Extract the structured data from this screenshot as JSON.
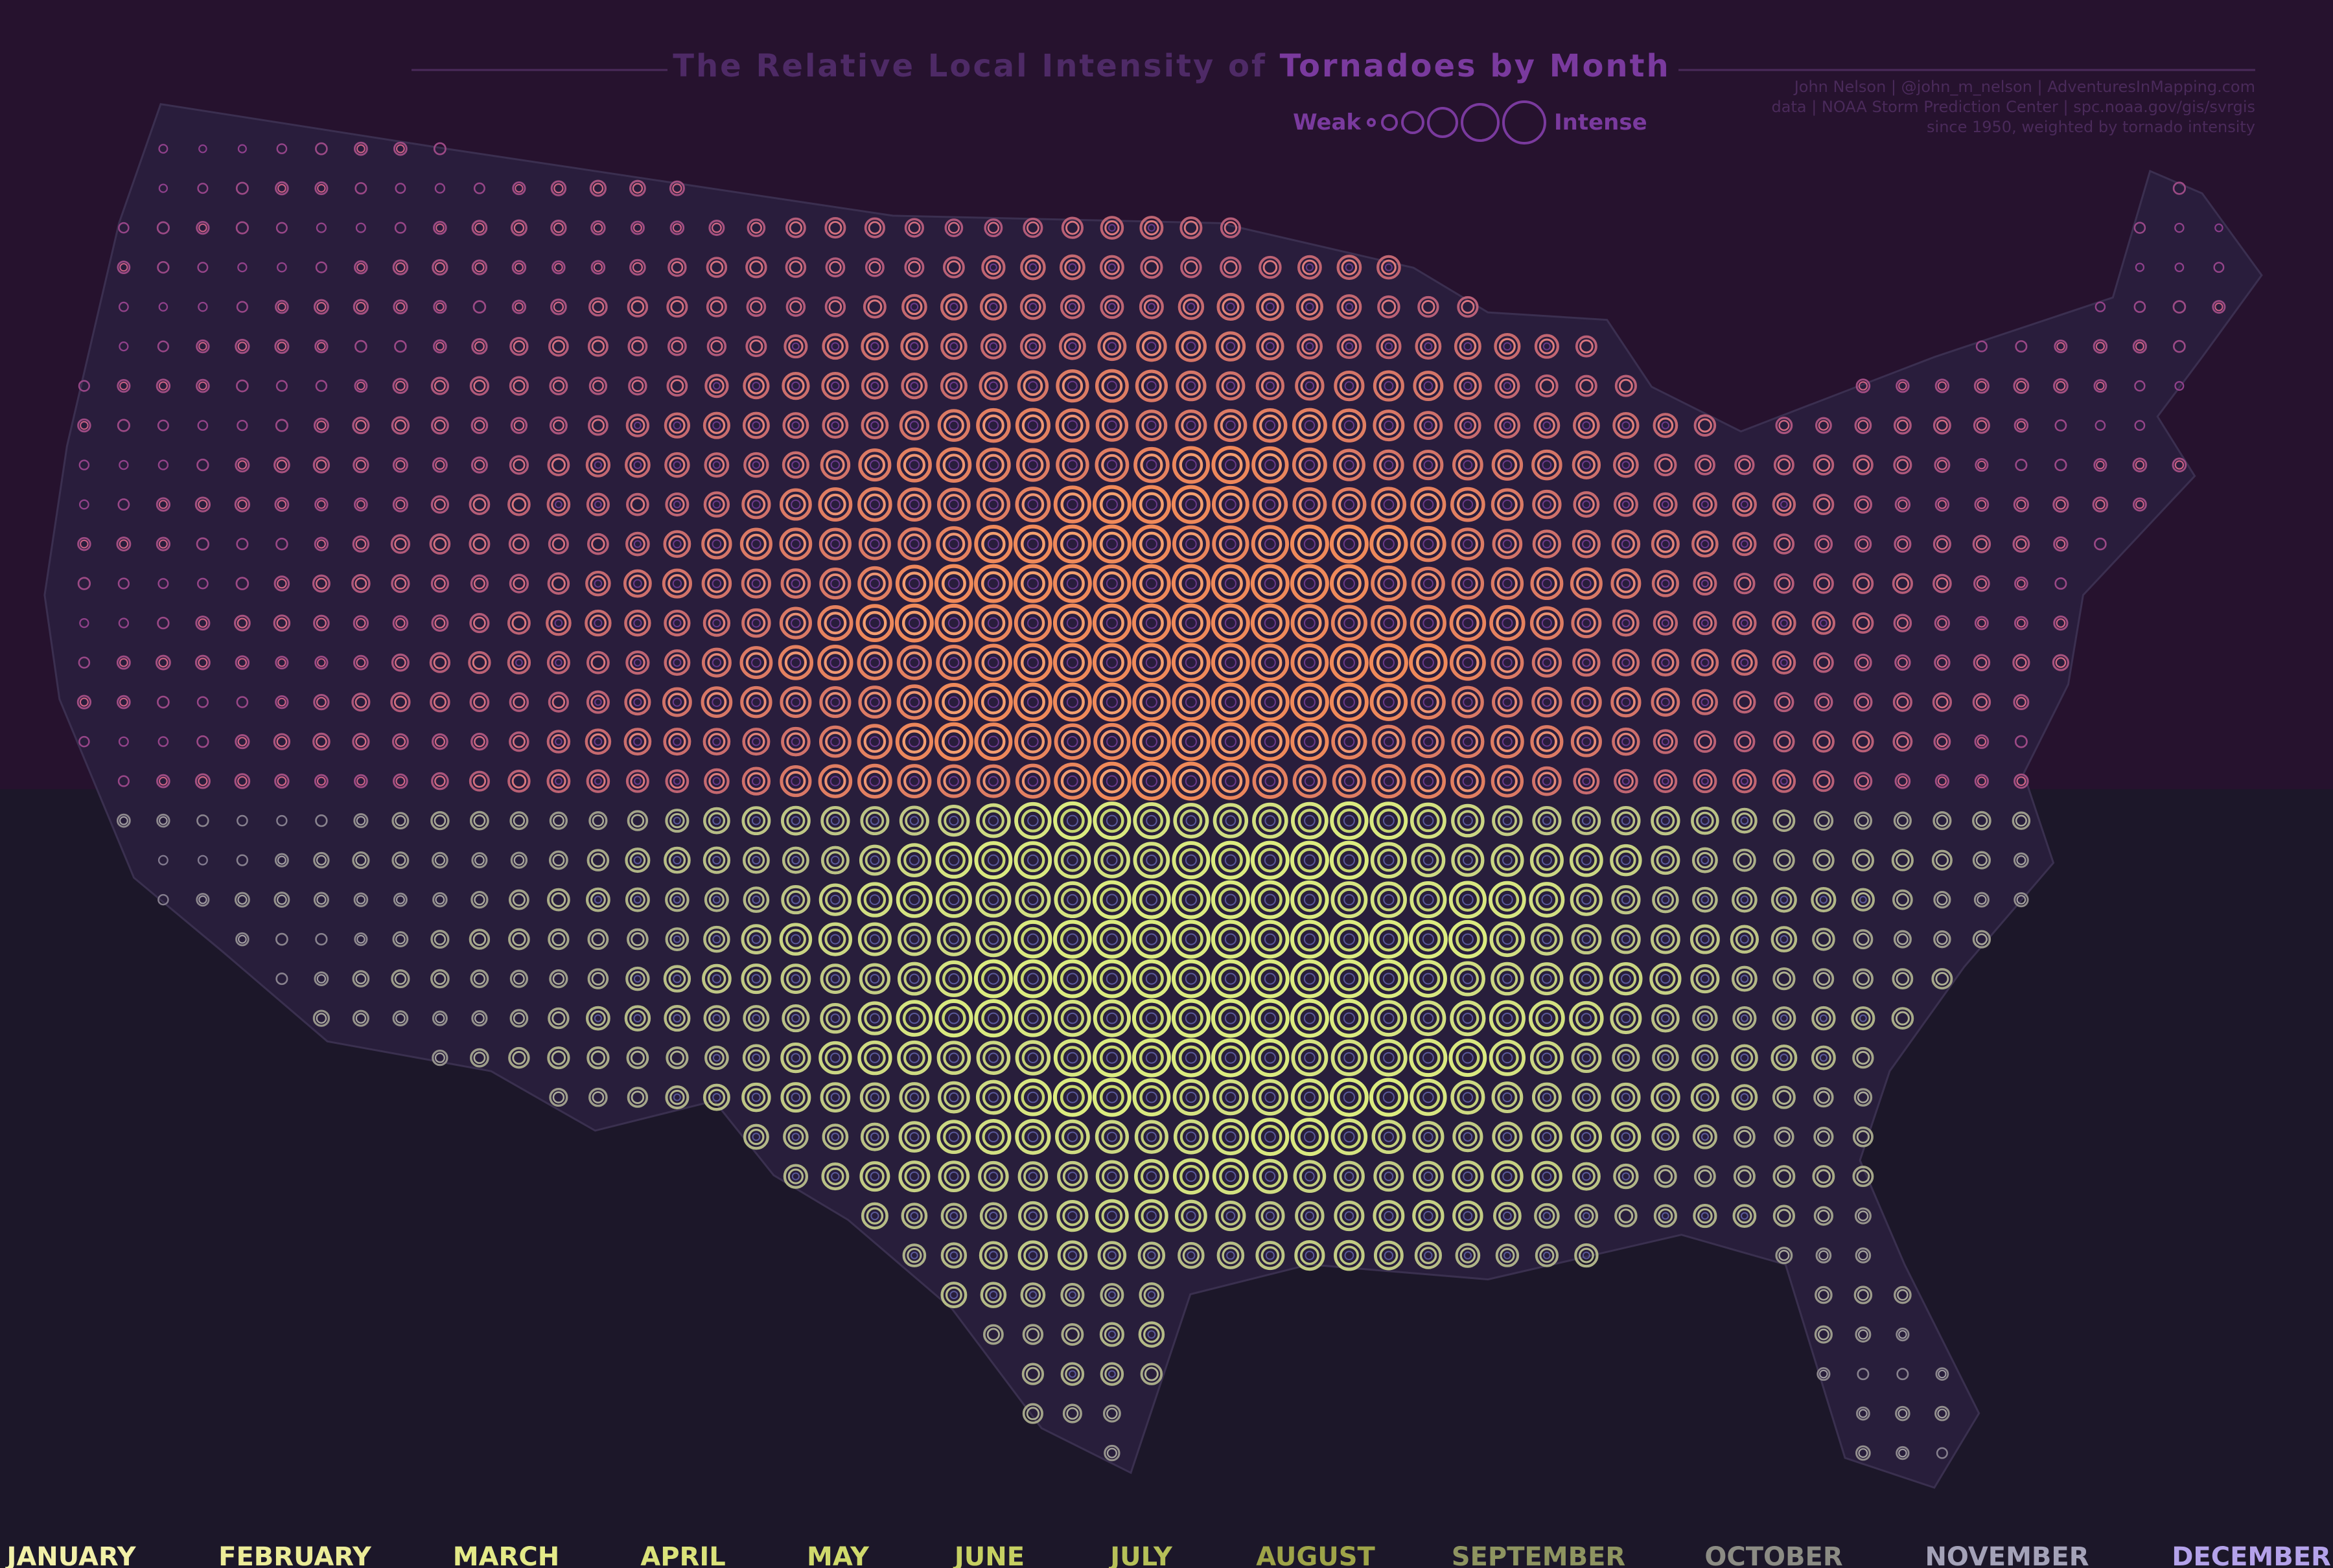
{
  "title": {
    "part1": "The Relative Local Intensity of ",
    "part2": "Tornadoes by Month"
  },
  "legend": {
    "weak": "Weak",
    "intense": "Intense"
  },
  "credits": [
    "John Nelson | @john_m_nelson | AdventuresInMapping.com",
    "data | NOAA Storm Prediction Center | spc.noaa.gov/gis/svrgis",
    "since 1950, weighted by tornado intensity"
  ],
  "months": [
    {
      "label": "JANUARY",
      "color": "#f2f0a8"
    },
    {
      "label": "FEBRUARY",
      "color": "#ecec98"
    },
    {
      "label": "MARCH",
      "color": "#e4ea88"
    },
    {
      "label": "APRIL",
      "color": "#dae27a"
    },
    {
      "label": "MAY",
      "color": "#d0da6c"
    },
    {
      "label": "JUNE",
      "color": "#c6d062"
    },
    {
      "label": "JULY",
      "color": "#b6c058"
    },
    {
      "label": "AUGUST",
      "color": "#9ea448"
    },
    {
      "label": "SEPTEMBER",
      "color": "#8e9460"
    },
    {
      "label": "OCTOBER",
      "color": "#8c8c84"
    },
    {
      "label": "NOVEMBER",
      "color": "#a4a2b8"
    },
    {
      "label": "DECEMBER",
      "color": "#b4a2ea"
    }
  ]
}
